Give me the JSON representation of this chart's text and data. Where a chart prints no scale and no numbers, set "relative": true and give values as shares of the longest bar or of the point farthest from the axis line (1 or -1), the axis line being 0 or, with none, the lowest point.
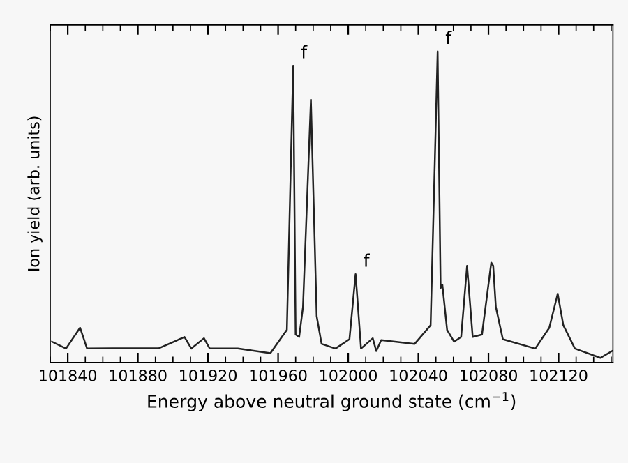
{
  "chart_data": {
    "type": "line",
    "relative": true,
    "xlabel": "Energy above neutral ground state (cm$^{−1}$)",
    "ylabel": "Ion yield (arb. units)",
    "xlim": [
      101830,
      102151
    ],
    "xticks": [
      101840,
      101880,
      101920,
      101960,
      102000,
      102040,
      102080,
      102120
    ],
    "grid": false,
    "legend": false,
    "marker": "none",
    "line_style": "solid",
    "annotations": [
      {
        "text": "f",
        "x": 101968.6,
        "y": 0.954
      },
      {
        "text": "f",
        "x": 102004.2,
        "y": 0.284
      },
      {
        "text": "f",
        "x": 102051,
        "y": 1.0
      }
    ],
    "series": [
      {
        "color": "#222222",
        "x": [
          101831,
          101839,
          101847,
          101851,
          101865.5,
          101892,
          101906.6,
          101910.5,
          101917.7,
          101921,
          101937,
          101955.6,
          101965,
          101968.6,
          101970,
          101972,
          101974.2,
          101978.7,
          101982,
          101984.8,
          101992.7,
          102000.7,
          102004.2,
          102007.3,
          102014,
          102016,
          102018.8,
          102037.9,
          102047,
          102051,
          102052.7,
          102053.7,
          102056.4,
          102060.4,
          102064.4,
          102067.8,
          102071,
          102076.3,
          102081.6,
          102082.7,
          102084.2,
          102088.2,
          102106.7,
          102114.7,
          102119.5,
          102122.7,
          102129.3,
          102143.9,
          102150.5
        ],
        "values": [
          0.067,
          0.045,
          0.112,
          0.045,
          0.046,
          0.046,
          0.082,
          0.045,
          0.078,
          0.045,
          0.045,
          0.03,
          0.105,
          0.954,
          0.09,
          0.082,
          0.179,
          0.845,
          0.149,
          0.06,
          0.045,
          0.075,
          0.284,
          0.045,
          0.078,
          0.037,
          0.072,
          0.06,
          0.12,
          1.0,
          0.239,
          0.25,
          0.105,
          0.067,
          0.082,
          0.311,
          0.082,
          0.09,
          0.321,
          0.311,
          0.179,
          0.075,
          0.045,
          0.112,
          0.221,
          0.12,
          0.045,
          0.015,
          0.037
        ]
      }
    ]
  }
}
